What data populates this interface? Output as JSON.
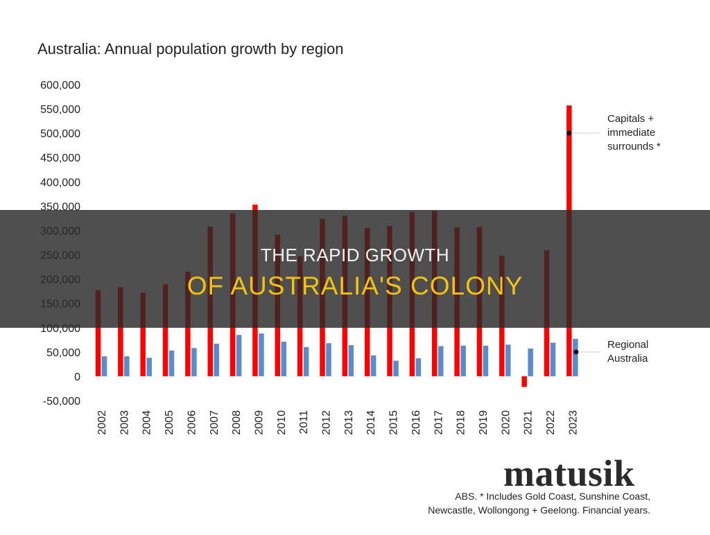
{
  "title": "Australia:  Annual population growth by region",
  "chart_data": {
    "type": "bar",
    "title": "Australia:  Annual population growth by region",
    "categories": [
      "2002",
      "2003",
      "2004",
      "2005",
      "2006",
      "2007",
      "2008",
      "2009",
      "2010",
      "2011",
      "2012",
      "2013",
      "2014",
      "2015",
      "2016",
      "2017",
      "2018",
      "2019",
      "2020",
      "2021",
      "2022",
      "2023"
    ],
    "series": [
      {
        "name": "Capitals + immediate surrounds *",
        "color": "#ff0000",
        "values": [
          177000,
          183000,
          172000,
          189000,
          215000,
          308000,
          335000,
          353000,
          291000,
          247000,
          324000,
          330000,
          305000,
          309000,
          338000,
          340000,
          306000,
          307000,
          248000,
          -22000,
          259000,
          557000
        ]
      },
      {
        "name": "Regional Australia",
        "color": "#5b8cc9",
        "values": [
          41000,
          41000,
          38000,
          53000,
          58000,
          67000,
          85000,
          88000,
          71000,
          60000,
          68000,
          64000,
          43000,
          32000,
          37000,
          62000,
          63000,
          63000,
          65000,
          57000,
          69000,
          77000
        ]
      }
    ],
    "ylim": [
      -50000,
      600000
    ],
    "yticks": [
      -50000,
      0,
      50000,
      100000,
      150000,
      200000,
      250000,
      300000,
      350000,
      400000,
      450000,
      500000,
      550000,
      600000
    ],
    "ytick_labels": [
      "-50,000",
      "0",
      "50,000",
      "100,000",
      "150,000",
      "200,000",
      "250,000",
      "300,000",
      "350,000",
      "400,000",
      "450,000",
      "500,000",
      "550,000",
      "600,000"
    ],
    "legend_placement": "right, inline labels",
    "grid": false
  },
  "legend": {
    "capitals": [
      "Capitals +",
      "immediate",
      "surrounds *"
    ],
    "regional": [
      "Regional",
      "Australia"
    ]
  },
  "brand": "matusik",
  "source": {
    "line1": "ABS.  * Includes Gold Coast, Sunshine Coast,",
    "line2": "Newcastle, Wollongong + Geelong.  Financial years."
  },
  "banner": {
    "line1": "THE RAPID GROWTH",
    "line2": "OF AUSTRALIA'S COLONY"
  }
}
